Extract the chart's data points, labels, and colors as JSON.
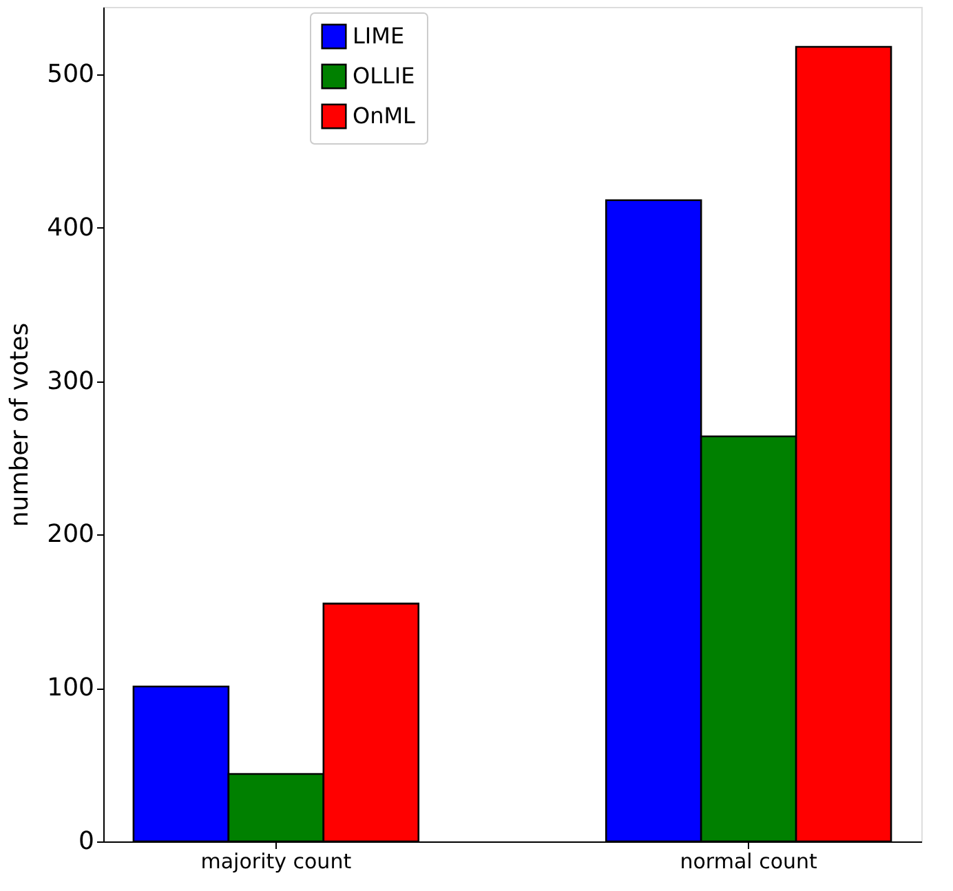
{
  "chart_data": {
    "type": "bar",
    "ylabel": "number of votes",
    "categories": [
      "majority count",
      "normal count"
    ],
    "series": [
      {
        "name": "LIME",
        "color": "#0000ff",
        "values": [
          101,
          418
        ]
      },
      {
        "name": "OLLIE",
        "color": "#008000",
        "values": [
          44,
          264
        ]
      },
      {
        "name": "OnML",
        "color": "#ff0000",
        "values": [
          155,
          518
        ]
      }
    ],
    "ylim": [
      0,
      544
    ],
    "yticks": [
      0,
      100,
      200,
      300,
      400,
      500
    ],
    "grid": false,
    "legend": "top left"
  }
}
